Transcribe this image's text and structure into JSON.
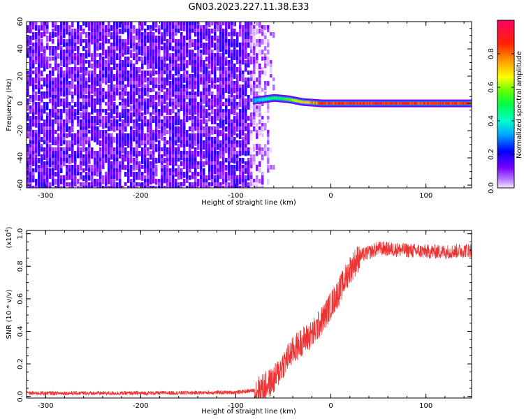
{
  "title": "GN03.2023.227.11.38.E33",
  "chart_data": [
    {
      "type": "heatmap",
      "xlabel": "Height of straight line (km)",
      "ylabel": "Frequency (Hz)",
      "xlim": [
        -320,
        148
      ],
      "ylim": [
        -62,
        60
      ],
      "xticks": [
        -300,
        -200,
        -100,
        0,
        100
      ],
      "yticks": [
        -60,
        -40,
        -20,
        0,
        20,
        40,
        60
      ],
      "noise_region": {
        "x_end": -60,
        "freq_range": [
          -62,
          60
        ],
        "amplitude": [
          0.0,
          0.2
        ]
      },
      "signal_ridge": [
        {
          "x": -82,
          "freq": 2,
          "amplitude": 0.35
        },
        {
          "x": -60,
          "freq": 4,
          "amplitude": 0.5
        },
        {
          "x": -45,
          "freq": 3,
          "amplitude": 0.6
        },
        {
          "x": -30,
          "freq": 1,
          "amplitude": 0.75
        },
        {
          "x": -10,
          "freq": 0,
          "amplitude": 0.9
        },
        {
          "x": 50,
          "freq": 0,
          "amplitude": 0.95
        },
        {
          "x": 148,
          "freq": 0,
          "amplitude": 0.9
        }
      ],
      "colorbar": {
        "label": "Normalized spectral amplitude",
        "range": [
          0,
          1
        ],
        "ticks": [
          0.0,
          0.2,
          0.4,
          0.6,
          0.8
        ],
        "tick_labels": [
          "0.0",
          "0.2",
          "0.4",
          "0.6",
          "0.8"
        ]
      }
    },
    {
      "type": "line",
      "xlabel": "Height of straight line (km)",
      "ylabel": "SNR (10 * v/v)",
      "yscale_label": "(x10",
      "yscale_exp": "4",
      "yscale_close": ")",
      "xlim": [
        -320,
        148
      ],
      "ylim": [
        -0.01,
        1.02
      ],
      "xticks": [
        -300,
        -200,
        -100,
        0,
        100
      ],
      "yticks": [
        0.0,
        0.2,
        0.4,
        0.6,
        0.8,
        1.0
      ],
      "ytick_labels": [
        "0.0",
        "0.2",
        "0.4",
        "0.6",
        "0.8",
        "1.0"
      ],
      "series": [
        {
          "color": "#ee3333",
          "x": [
            -320,
            -200,
            -100,
            -75,
            -60,
            -50,
            -40,
            -30,
            -20,
            -10,
            0,
            10,
            20,
            30,
            50,
            75,
            100,
            125,
            148
          ],
          "y": [
            0.02,
            0.02,
            0.025,
            0.04,
            0.1,
            0.2,
            0.28,
            0.34,
            0.38,
            0.46,
            0.56,
            0.66,
            0.78,
            0.86,
            0.91,
            0.9,
            0.89,
            0.89,
            0.9
          ]
        }
      ]
    }
  ]
}
